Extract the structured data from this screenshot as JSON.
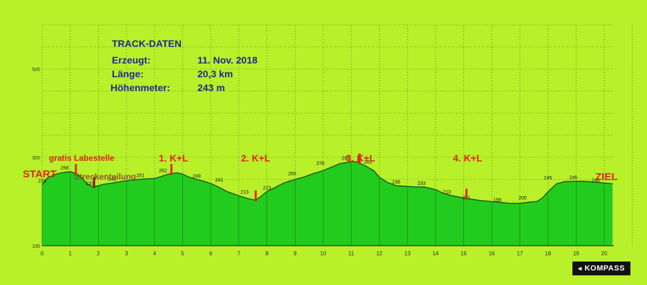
{
  "track_info": {
    "title": "TRACK-DATEN",
    "rows": [
      {
        "label": "Erzeugt:",
        "value": "11. Nov. 2018"
      },
      {
        "label": "Länge:",
        "value": "20,3 km"
      },
      {
        "label": "Höhenmeter:",
        "value": "243 m"
      }
    ]
  },
  "labels": {
    "start": "START",
    "ziel": "ZIEL",
    "labestelle": "gratis Labestelle",
    "streckenteilung": "Streckenteilung",
    "kl1": "1. K+L",
    "kl2": "2. K+L",
    "kl3": "3. K+L",
    "kl4": "4. K+L"
  },
  "brand": {
    "name": "KOMPASS",
    "icon": "compass-arrow-icon"
  },
  "colors": {
    "background": "#b8f02a",
    "fill": "#22cc1e",
    "outline": "#0f4d0f",
    "markers": "#e0261c",
    "streckenteilung_marker": "#8b1a12",
    "info_text": "#1a2a8a"
  },
  "chart_data": {
    "type": "area",
    "title": "",
    "xlabel": "",
    "ylabel": "",
    "xlim": [
      0,
      20.3
    ],
    "ylim": [
      100,
      600
    ],
    "xticks": [
      0,
      1,
      2,
      3,
      4,
      5,
      6,
      7,
      8,
      9,
      10,
      11,
      12,
      13,
      14,
      15,
      16,
      17,
      18,
      19,
      20
    ],
    "yticks": [
      100,
      300,
      500
    ],
    "grid": true,
    "x": [
      0,
      0.2,
      0.5,
      0.8,
      1.0,
      1.2,
      1.4,
      1.6,
      1.8,
      2.0,
      2.2,
      2.5,
      2.8,
      3.0,
      3.3,
      3.6,
      4.0,
      4.2,
      4.5,
      4.8,
      5.0,
      5.2,
      5.5,
      5.8,
      6.0,
      6.3,
      6.6,
      7.0,
      7.3,
      7.6,
      7.8,
      8.0,
      8.3,
      8.6,
      9.0,
      9.3,
      9.6,
      10.0,
      10.3,
      10.6,
      11.0,
      11.2,
      11.5,
      11.8,
      12.0,
      12.3,
      12.6,
      13.0,
      13.3,
      13.6,
      14.0,
      14.3,
      14.6,
      15.0,
      15.3,
      15.6,
      16.0,
      16.3,
      16.6,
      17.0,
      17.3,
      17.6,
      17.8,
      18.0,
      18.3,
      18.6,
      19.0,
      19.3,
      19.6,
      20.0,
      20.3
    ],
    "y": [
      238,
      254,
      262,
      266,
      268,
      263,
      255,
      240,
      233,
      236,
      239,
      242,
      245,
      247,
      249,
      251,
      252,
      256,
      262,
      265,
      262,
      256,
      250,
      245,
      241,
      232,
      222,
      213,
      207,
      203,
      212,
      223,
      232,
      242,
      250,
      255,
      262,
      270,
      278,
      286,
      290,
      290,
      281,
      270,
      255,
      243,
      236,
      234,
      233,
      233,
      227,
      218,
      213,
      208,
      205,
      202,
      200,
      198,
      196,
      196,
      198,
      200,
      208,
      222,
      240,
      245,
      246,
      246,
      244,
      242,
      240
    ],
    "point_labels": [
      {
        "x": 0,
        "y": 238,
        "label": "238"
      },
      {
        "x": 0.8,
        "y": 268,
        "label": "268"
      },
      {
        "x": 1.7,
        "y": 233,
        "label": "233"
      },
      {
        "x": 2.5,
        "y": 242,
        "label": "242"
      },
      {
        "x": 3.5,
        "y": 251,
        "label": "251"
      },
      {
        "x": 4.3,
        "y": 262,
        "label": "262"
      },
      {
        "x": 5.5,
        "y": 249,
        "label": "249"
      },
      {
        "x": 6.3,
        "y": 241,
        "label": "241"
      },
      {
        "x": 7.2,
        "y": 213,
        "label": "213"
      },
      {
        "x": 8.0,
        "y": 223,
        "label": "223"
      },
      {
        "x": 8.9,
        "y": 255,
        "label": "255"
      },
      {
        "x": 9.9,
        "y": 278,
        "label": "278"
      },
      {
        "x": 10.8,
        "y": 290,
        "label": "290"
      },
      {
        "x": 11.6,
        "y": 281,
        "label": "281"
      },
      {
        "x": 12.6,
        "y": 236,
        "label": "236"
      },
      {
        "x": 13.5,
        "y": 233,
        "label": "233"
      },
      {
        "x": 14.4,
        "y": 213,
        "label": "213"
      },
      {
        "x": 15.1,
        "y": 201,
        "label": "201"
      },
      {
        "x": 16.2,
        "y": 195,
        "label": "195"
      },
      {
        "x": 17.1,
        "y": 200,
        "label": "200"
      },
      {
        "x": 18.0,
        "y": 245,
        "label": "245"
      },
      {
        "x": 18.9,
        "y": 246,
        "label": "246"
      },
      {
        "x": 19.7,
        "y": 240,
        "label": "240"
      }
    ],
    "markers": [
      {
        "x": 1.2,
        "label": "gratis Labestelle",
        "type": "labestelle"
      },
      {
        "x": 1.85,
        "label": "Streckenteilung",
        "type": "streckenteilung"
      },
      {
        "x": 4.6,
        "label": "1. K+L",
        "type": "kl"
      },
      {
        "x": 7.6,
        "label": "2. K+L",
        "type": "kl"
      },
      {
        "x": 11.3,
        "label": "3. K+L",
        "type": "kl"
      },
      {
        "x": 15.1,
        "label": "4. K+L",
        "type": "kl"
      }
    ]
  }
}
